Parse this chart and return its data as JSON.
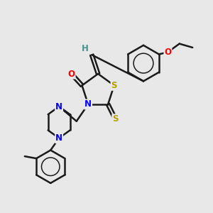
{
  "background_color": "#e8e8e8",
  "atom_colors": {
    "C": "#1a1a1a",
    "H": "#4a9090",
    "N": "#0000ff",
    "O": "#ff0000",
    "S": "#b8a000"
  },
  "bond_color": "#1a1a1a",
  "bond_width": 1.8,
  "font_size_atom": 8.5
}
